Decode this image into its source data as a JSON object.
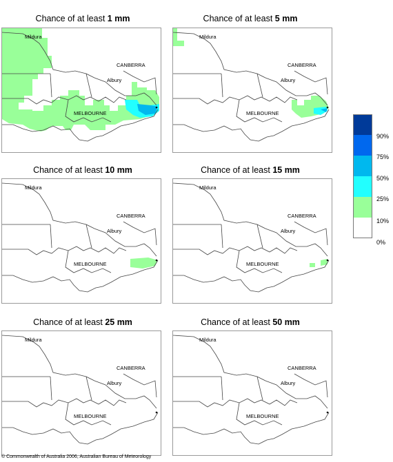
{
  "panels": [
    {
      "title_prefix": "Chance of at least ",
      "amount": "1 mm"
    },
    {
      "title_prefix": "Chance of at least ",
      "amount": "5 mm"
    },
    {
      "title_prefix": "Chance of at least ",
      "amount": "10 mm"
    },
    {
      "title_prefix": "Chance of at least ",
      "amount": "15 mm"
    },
    {
      "title_prefix": "Chance of at least ",
      "amount": "25 mm"
    },
    {
      "title_prefix": "Chance of at least ",
      "amount": "50 mm"
    }
  ],
  "places": {
    "mildura": "Mildura",
    "canberra": "CANBERRA",
    "albury": "Albury",
    "melbourne": "MELBOURNE"
  },
  "legend": {
    "ticks": [
      "90%",
      "75%",
      "50%",
      "25%",
      "10%",
      "0%"
    ],
    "colors": [
      "#003a99",
      "#0068ee",
      "#00b8ee",
      "#22ffff",
      "#99ff99",
      "#ffffff"
    ]
  },
  "footer": "© Commonwealth of Australia 2006, Australian Bureau of Meteorology"
}
